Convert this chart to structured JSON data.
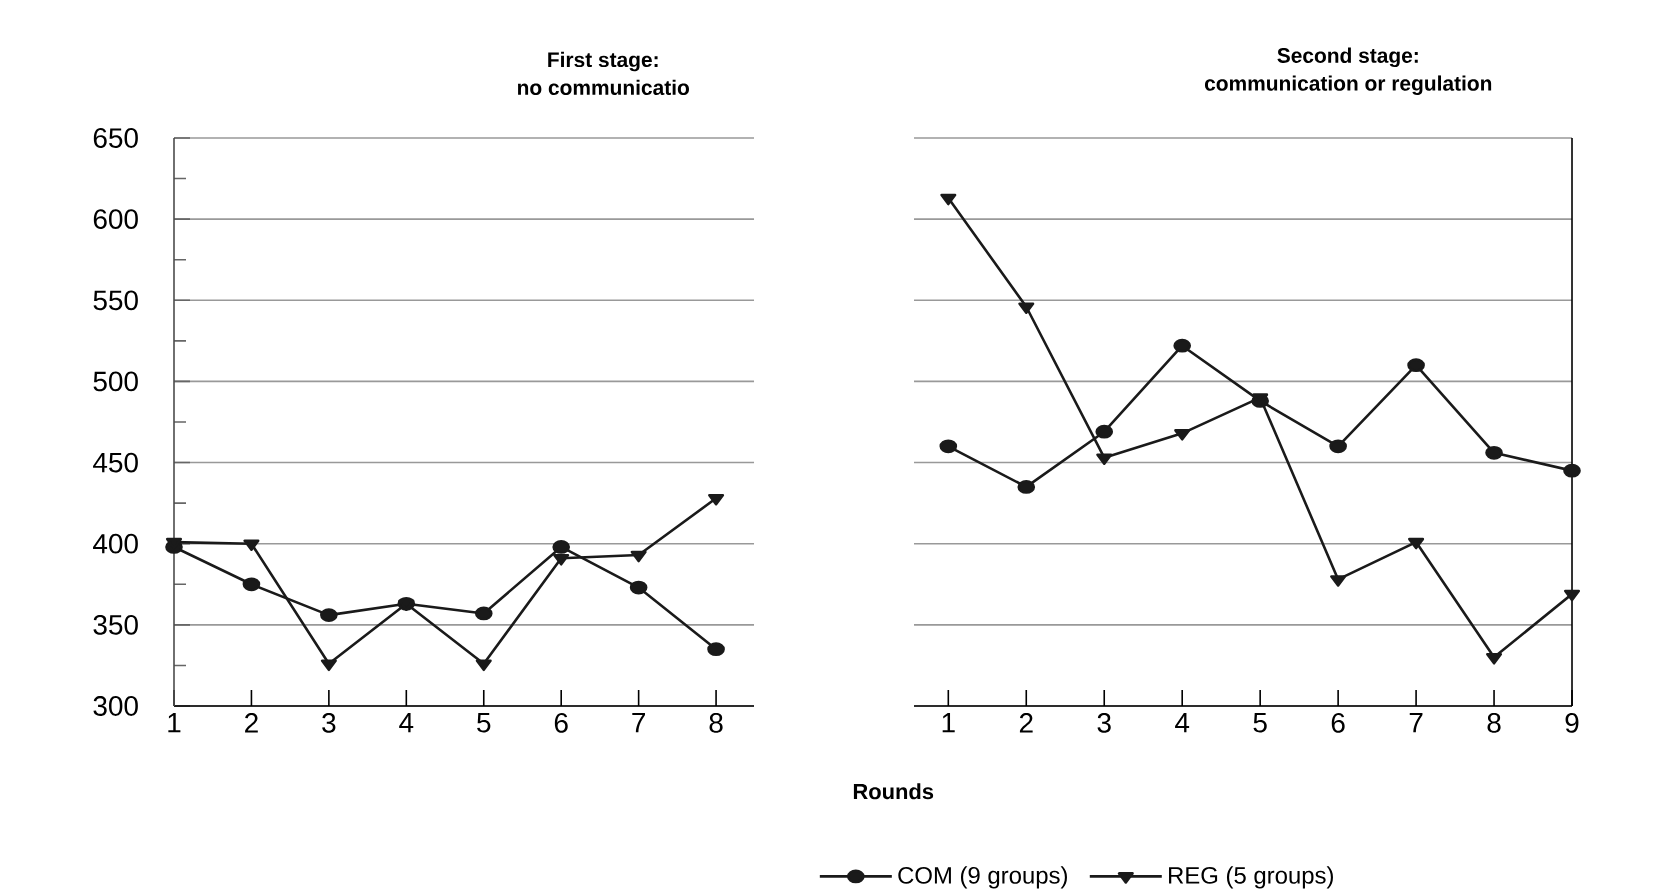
{
  "chart_data": [
    {
      "type": "line",
      "title": "First stage:",
      "subtitle": "no communicatio",
      "xlabel": "Rounds",
      "categories": [
        "1",
        "2",
        "3",
        "4",
        "5",
        "6",
        "7",
        "8"
      ],
      "series": [
        {
          "color": "#1a1a1a",
          "marker": "circle",
          "values": [
            398,
            375,
            356,
            363,
            357,
            398,
            373,
            335
          ]
        },
        {
          "color": "#1a1a1a",
          "marker": "triangle",
          "values": [
            401,
            400,
            326,
            363,
            326,
            391,
            393,
            428
          ]
        }
      ],
      "ylim": [
        300,
        650
      ],
      "yticks": [
        300,
        {
          "value": 325,
          "label": null
        },
        350,
        {
          "value": 375,
          "label": null
        },
        400,
        {
          "value": 425,
          "label": null
        },
        450,
        {
          "value": 475,
          "label": null
        },
        500,
        {
          "value": 525,
          "label": null
        },
        550,
        {
          "value": 575,
          "label": null
        },
        600,
        {
          "value": 625,
          "label": null
        },
        650
      ],
      "grid": "y",
      "line_style": "solid"
    },
    {
      "type": "line",
      "title": "Second stage:",
      "subtitle": "communication or regulation",
      "categories": [
        "1",
        "2",
        "3",
        "4",
        "5",
        "6",
        "7",
        "8",
        "9"
      ],
      "series": [
        {
          "name": "COM (9 groups)",
          "color": "#1a1a1a",
          "marker": "circle",
          "values": [
            460,
            435,
            469,
            522,
            488,
            460,
            510,
            456,
            445
          ]
        },
        {
          "name": "REG (5 groups)",
          "color": "#1a1a1a",
          "marker": "triangle",
          "values": [
            613,
            546,
            453,
            468,
            490,
            378,
            401,
            330,
            369
          ]
        }
      ],
      "ylim": [
        300,
        650
      ],
      "yticks": [
        300,
        350,
        400,
        450,
        500,
        550,
        600,
        650
      ],
      "grid": "y",
      "tick_labels": "x",
      "legend": "bottom",
      "line_style": "solid"
    }
  ]
}
